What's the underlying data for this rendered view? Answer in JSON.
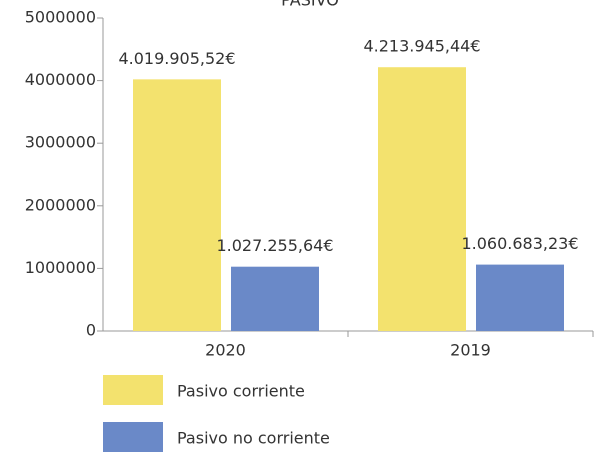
{
  "chart_data": {
    "type": "bar",
    "title": "PASIVO",
    "categories": [
      "2020",
      "2019"
    ],
    "series": [
      {
        "name": "Pasivo corriente",
        "color": "#f3e26e",
        "values": [
          4019905.52,
          4213945.44
        ],
        "value_labels": [
          "4.019.905,52€",
          "4.213.945,44€"
        ]
      },
      {
        "name": "Pasivo no corriente",
        "color": "#6a89c8",
        "values": [
          1027255.64,
          1060683.23
        ],
        "value_labels": [
          "1.027.255,64€",
          "1.060.683,23€"
        ]
      }
    ],
    "ylim": [
      0,
      5000000
    ],
    "yticks": [
      0,
      1000000,
      2000000,
      3000000,
      4000000,
      5000000
    ],
    "grid": false
  }
}
